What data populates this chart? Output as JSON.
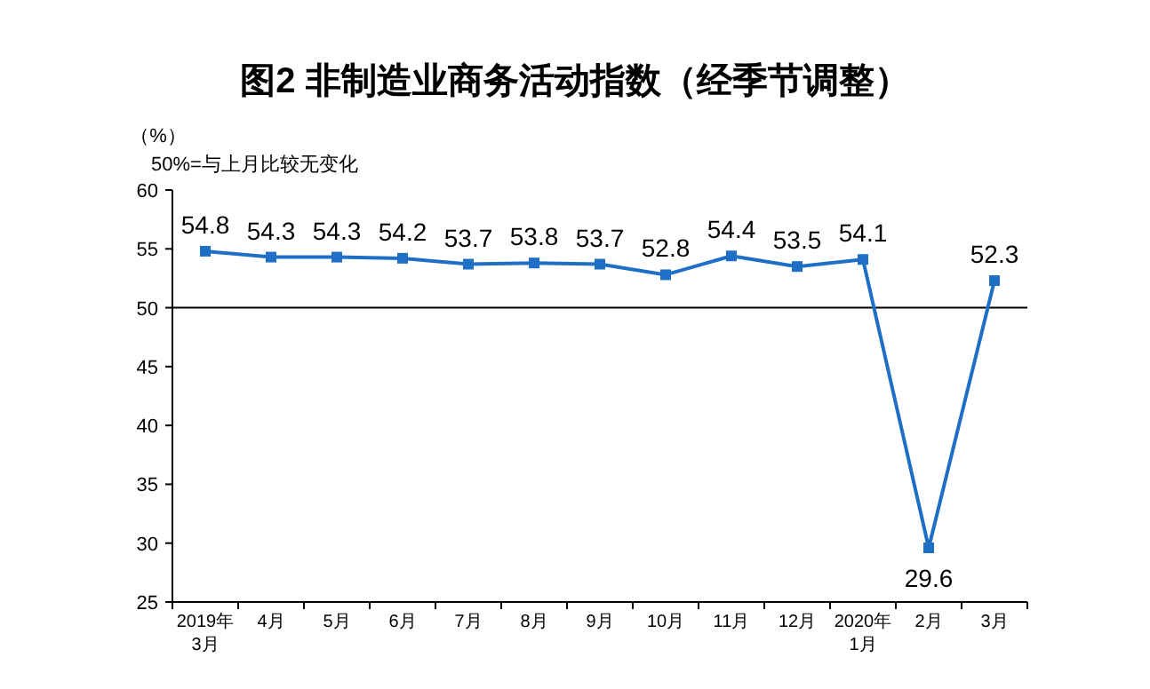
{
  "chart_data": {
    "type": "line",
    "title": "图2  非制造业商务活动指数（经季节调整）",
    "ylabel": "（%）",
    "annotations": [
      "50%=与上月比较无变化"
    ],
    "categories": [
      "2019年\n3月",
      "4月",
      "5月",
      "6月",
      "7月",
      "8月",
      "9月",
      "10月",
      "11月",
      "12月",
      "2020年\n1月",
      "2月",
      "3月"
    ],
    "series": [
      {
        "color": "#1f6fc6",
        "values": [
          54.8,
          54.3,
          54.3,
          54.2,
          53.7,
          53.8,
          53.7,
          52.8,
          54.4,
          53.5,
          54.1,
          29.6,
          52.3
        ]
      }
    ],
    "ylim": [
      25,
      60
    ],
    "yticks": [
      25,
      30,
      35,
      40,
      45,
      50,
      55,
      60
    ],
    "ref_lines": [
      {
        "axis": "y",
        "value": 50,
        "label": null,
        "color": "#000000"
      }
    ],
    "marker": "square",
    "data_labels": true,
    "grid": false
  }
}
